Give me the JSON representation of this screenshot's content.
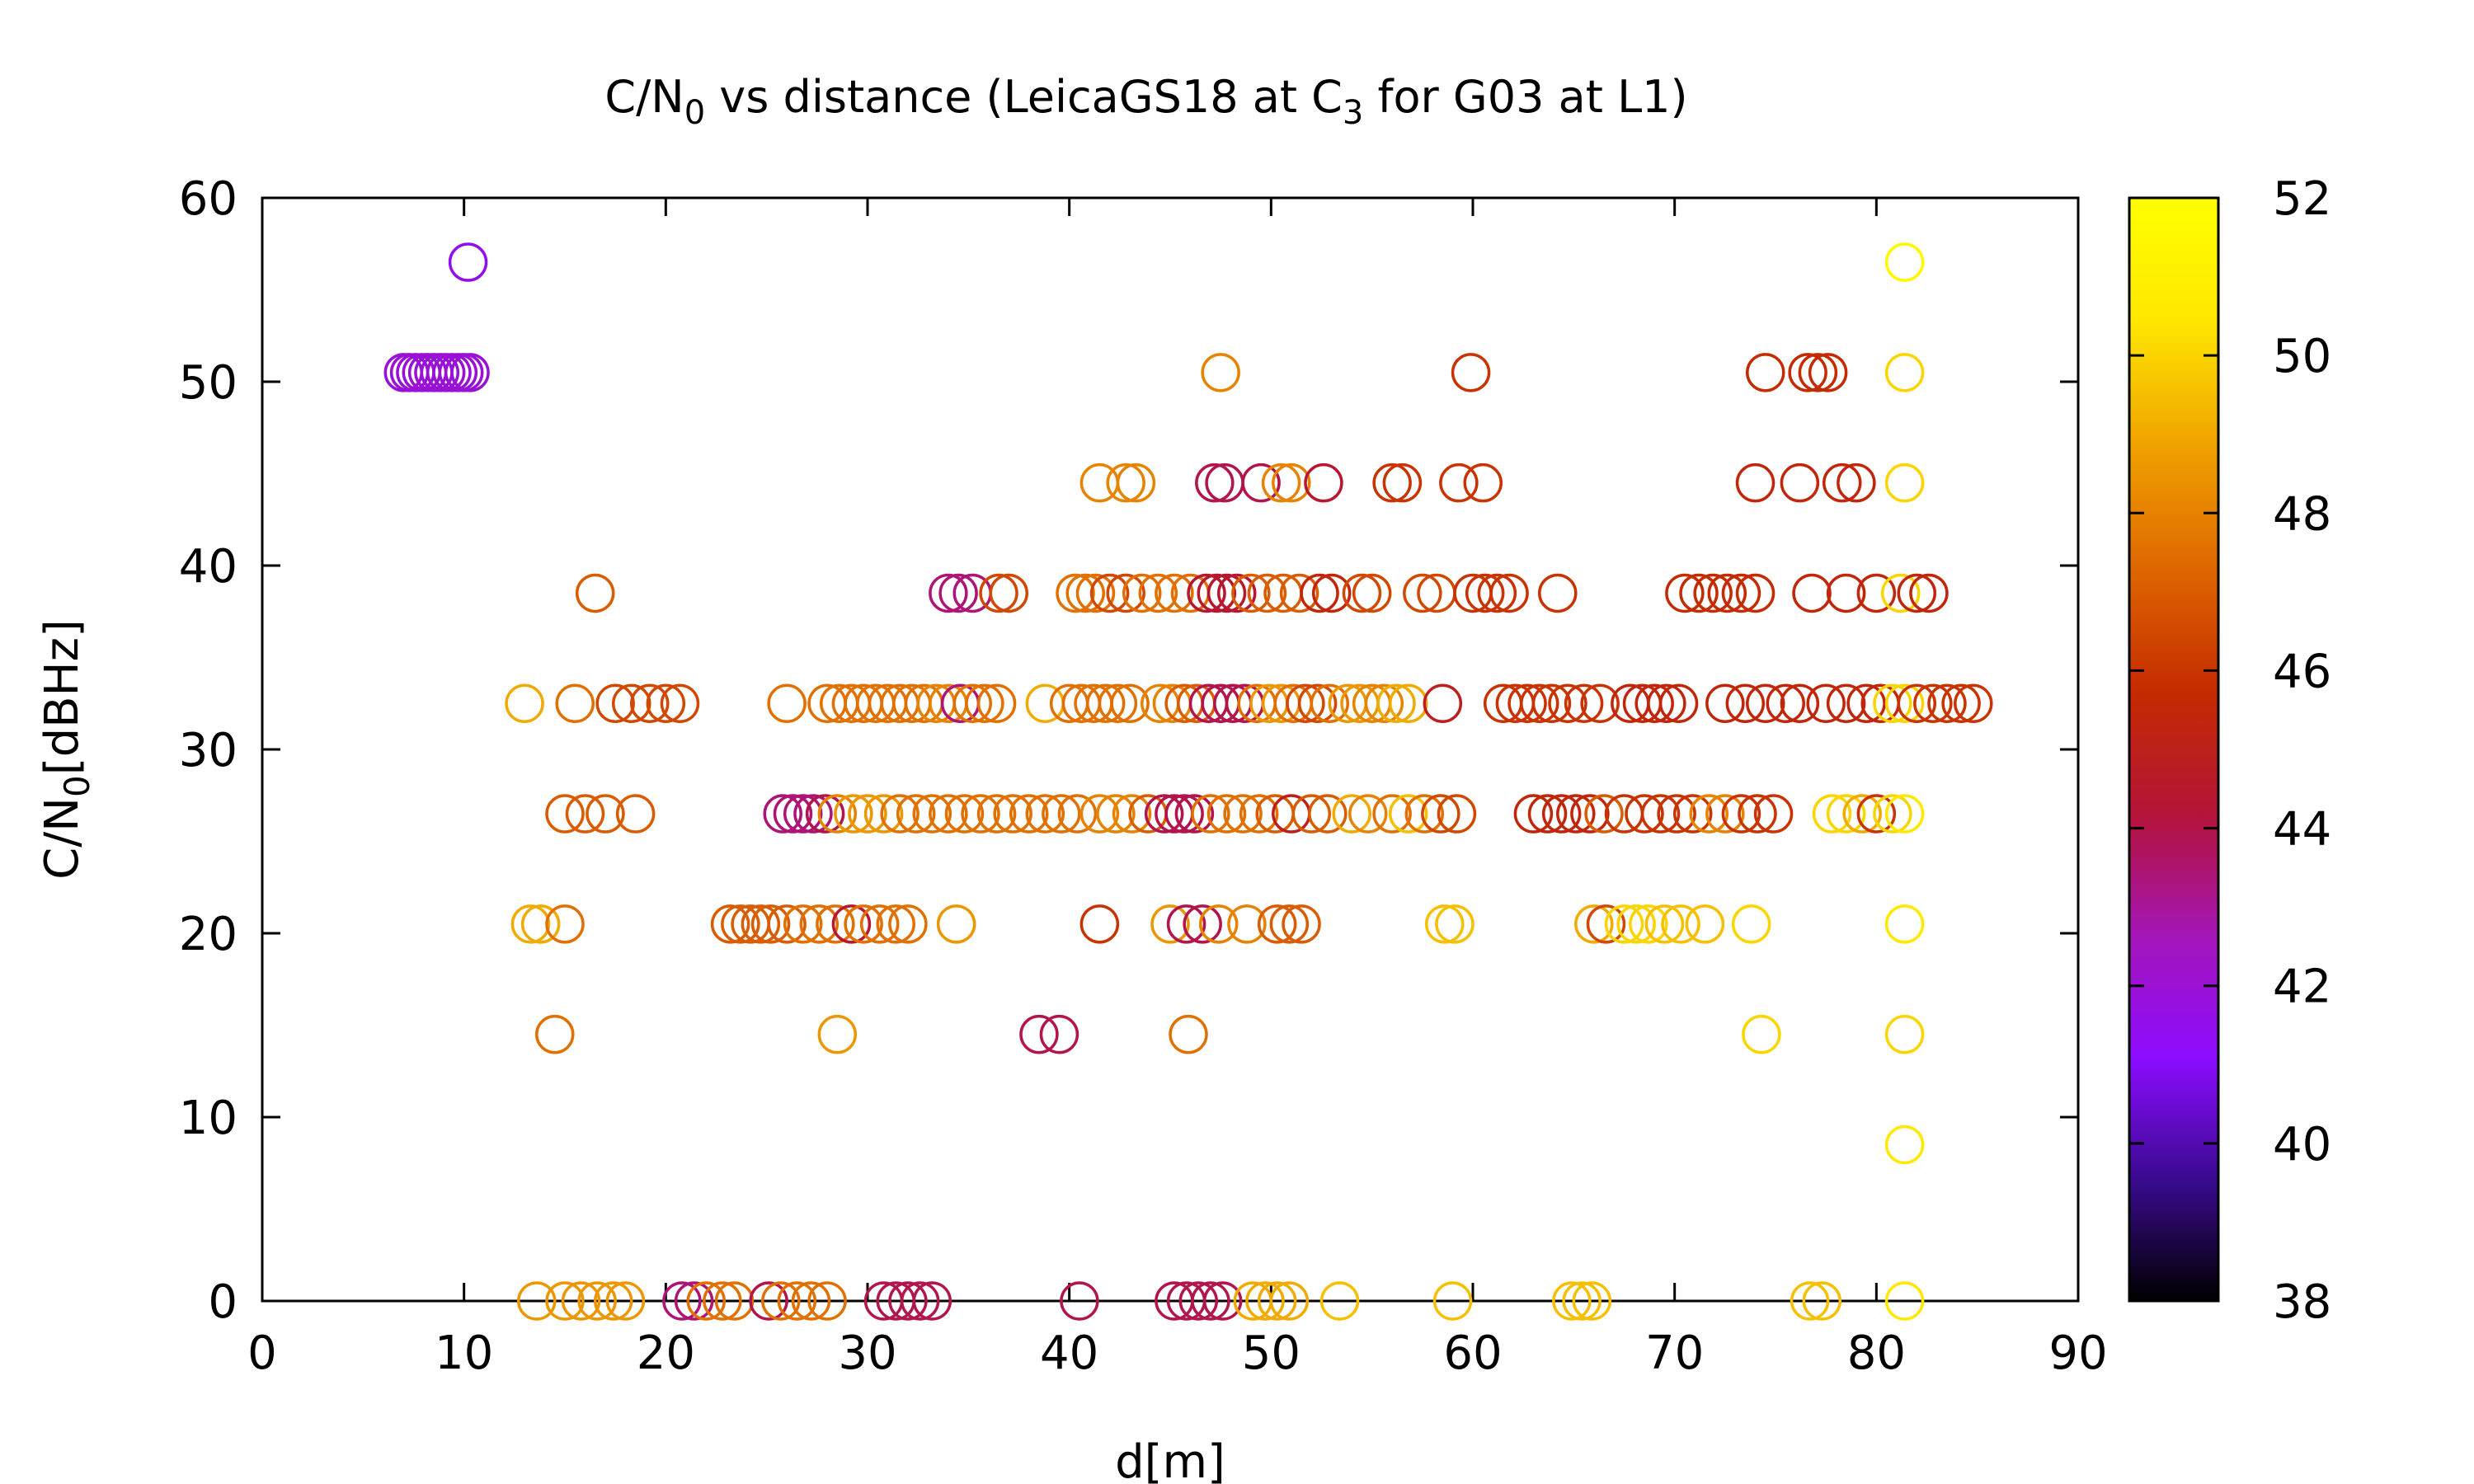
{
  "chart_data": {
    "type": "scatter",
    "title": "C/N",
    "title_sub": "0",
    "title_rest": " vs distance (LeicaGS18 at C",
    "title_sub2": "3",
    "title_tail": " for G03 at L1)",
    "xlabel": "d[m]",
    "ylabel": "C/N",
    "ylabel_sub": "0",
    "ylabel_tail": "[dBHz]",
    "xlim": [
      0,
      90
    ],
    "ylim": [
      0,
      60
    ],
    "xticks": [
      0,
      10,
      20,
      30,
      40,
      50,
      60,
      70,
      80,
      90
    ],
    "yticks": [
      0,
      10,
      20,
      30,
      40,
      50,
      60
    ],
    "colorbar": {
      "range": [
        38,
        52
      ],
      "ticks": [
        38,
        40,
        42,
        44,
        46,
        48,
        50,
        52
      ],
      "palette": [
        "#000000",
        "#3a0a8f",
        "#8b0cff",
        "#a415b8",
        "#b4143a",
        "#c42a00",
        "#df6a00",
        "#f0a500",
        "#ffe800",
        "#ffff00"
      ]
    },
    "marker": "open-circle",
    "grid": false,
    "points": [
      [
        10.2,
        56.5,
        41.5
      ],
      [
        7.0,
        50.5,
        42.0
      ],
      [
        7.3,
        50.5,
        42.0
      ],
      [
        7.6,
        50.5,
        42.0
      ],
      [
        7.9,
        50.5,
        42.0
      ],
      [
        8.2,
        50.5,
        42.0
      ],
      [
        8.5,
        50.5,
        42.0
      ],
      [
        8.8,
        50.5,
        42.0
      ],
      [
        9.1,
        50.5,
        42.0
      ],
      [
        9.4,
        50.5,
        42.0
      ],
      [
        9.7,
        50.5,
        42.0
      ],
      [
        10.0,
        50.5,
        42.0
      ],
      [
        10.3,
        50.5,
        42.0
      ],
      [
        47.5,
        50.5,
        48.0
      ],
      [
        59.9,
        50.5,
        46.0
      ],
      [
        74.5,
        50.5,
        45.8
      ],
      [
        76.6,
        50.5,
        45.8
      ],
      [
        77.1,
        50.5,
        45.8
      ],
      [
        77.6,
        50.5,
        45.8
      ],
      [
        81.4,
        56.5,
        51.5
      ],
      [
        81.4,
        50.5,
        50.0
      ],
      [
        41.5,
        44.5,
        48.0
      ],
      [
        42.8,
        44.5,
        48.0
      ],
      [
        43.3,
        44.5,
        48.0
      ],
      [
        47.2,
        44.5,
        44.0
      ],
      [
        47.7,
        44.5,
        44.0
      ],
      [
        49.5,
        44.5,
        44.0
      ],
      [
        50.5,
        44.5,
        48.0
      ],
      [
        51.0,
        44.5,
        48.0
      ],
      [
        52.6,
        44.5,
        44.5
      ],
      [
        56.0,
        44.5,
        46.0
      ],
      [
        56.5,
        44.5,
        46.0
      ],
      [
        59.3,
        44.5,
        46.0
      ],
      [
        60.5,
        44.5,
        46.0
      ],
      [
        74.0,
        44.5,
        45.5
      ],
      [
        76.2,
        44.5,
        45.5
      ],
      [
        78.3,
        44.5,
        45.5
      ],
      [
        79.0,
        44.5,
        45.5
      ],
      [
        81.4,
        44.5,
        50.0
      ],
      [
        16.5,
        38.5,
        47.0
      ],
      [
        34.0,
        38.5,
        43.5
      ],
      [
        34.5,
        38.5,
        43.5
      ],
      [
        35.2,
        38.5,
        43.5
      ],
      [
        36.5,
        38.5,
        46.5
      ],
      [
        37.0,
        38.5,
        46.5
      ],
      [
        40.3,
        38.5,
        47.5
      ],
      [
        40.8,
        38.5,
        47.5
      ],
      [
        41.3,
        38.5,
        47.5
      ],
      [
        42.0,
        38.5,
        46.5
      ],
      [
        42.8,
        38.5,
        46.5
      ],
      [
        43.6,
        38.5,
        47.5
      ],
      [
        44.4,
        38.5,
        47.5
      ],
      [
        45.2,
        38.5,
        47.5
      ],
      [
        46.0,
        38.5,
        47.5
      ],
      [
        46.8,
        38.5,
        44.5
      ],
      [
        47.3,
        38.5,
        44.5
      ],
      [
        47.8,
        38.5,
        44.5
      ],
      [
        48.3,
        38.5,
        44.5
      ],
      [
        49.0,
        38.5,
        47.0
      ],
      [
        49.8,
        38.5,
        47.0
      ],
      [
        50.6,
        38.5,
        47.0
      ],
      [
        51.4,
        38.5,
        47.0
      ],
      [
        52.4,
        38.5,
        45.5
      ],
      [
        53.0,
        38.5,
        45.5
      ],
      [
        54.5,
        38.5,
        46.5
      ],
      [
        55.0,
        38.5,
        46.5
      ],
      [
        57.5,
        38.5,
        46.5
      ],
      [
        58.2,
        38.5,
        46.5
      ],
      [
        60.0,
        38.5,
        46.0
      ],
      [
        60.6,
        38.5,
        46.0
      ],
      [
        61.2,
        38.5,
        46.0
      ],
      [
        61.8,
        38.5,
        46.0
      ],
      [
        64.2,
        38.5,
        46.0
      ],
      [
        70.5,
        38.5,
        45.8
      ],
      [
        71.2,
        38.5,
        45.8
      ],
      [
        71.9,
        38.5,
        45.8
      ],
      [
        72.6,
        38.5,
        45.8
      ],
      [
        73.3,
        38.5,
        45.8
      ],
      [
        74.0,
        38.5,
        45.8
      ],
      [
        76.8,
        38.5,
        45.5
      ],
      [
        78.5,
        38.5,
        45.5
      ],
      [
        80.0,
        38.5,
        45.5
      ],
      [
        81.2,
        38.5,
        50.0
      ],
      [
        82.0,
        38.5,
        45.5
      ],
      [
        82.6,
        38.5,
        45.5
      ],
      [
        13.0,
        32.5,
        49.0
      ],
      [
        15.5,
        32.5,
        47.5
      ],
      [
        17.5,
        32.5,
        46.5
      ],
      [
        18.3,
        32.5,
        46.5
      ],
      [
        19.2,
        32.5,
        46.5
      ],
      [
        20.0,
        32.5,
        46.5
      ],
      [
        20.7,
        32.5,
        46.5
      ],
      [
        26.0,
        32.5,
        47.5
      ],
      [
        28.0,
        32.5,
        47.5
      ],
      [
        28.6,
        32.5,
        47.5
      ],
      [
        29.2,
        32.5,
        47.5
      ],
      [
        29.8,
        32.5,
        47.5
      ],
      [
        30.4,
        32.5,
        47.5
      ],
      [
        31.0,
        32.5,
        47.5
      ],
      [
        31.6,
        32.5,
        47.5
      ],
      [
        32.2,
        32.5,
        47.5
      ],
      [
        32.8,
        32.5,
        47.5
      ],
      [
        33.4,
        32.5,
        48.0
      ],
      [
        34.0,
        32.5,
        48.0
      ],
      [
        34.6,
        32.5,
        43.5
      ],
      [
        35.2,
        32.5,
        47.5
      ],
      [
        35.8,
        32.5,
        47.5
      ],
      [
        36.4,
        32.5,
        47.5
      ],
      [
        38.8,
        32.5,
        49.0
      ],
      [
        40.0,
        32.5,
        47.5
      ],
      [
        40.6,
        32.5,
        47.5
      ],
      [
        41.2,
        32.5,
        47.5
      ],
      [
        41.8,
        32.5,
        47.5
      ],
      [
        42.4,
        32.5,
        47.5
      ],
      [
        43.0,
        32.5,
        47.5
      ],
      [
        44.5,
        32.5,
        48.0
      ],
      [
        45.1,
        32.5,
        48.0
      ],
      [
        45.7,
        32.5,
        47.0
      ],
      [
        46.3,
        32.5,
        47.0
      ],
      [
        46.9,
        32.5,
        44.0
      ],
      [
        47.5,
        32.5,
        44.0
      ],
      [
        48.1,
        32.5,
        44.0
      ],
      [
        48.7,
        32.5,
        44.0
      ],
      [
        49.3,
        32.5,
        47.5
      ],
      [
        49.9,
        32.5,
        48.5
      ],
      [
        50.5,
        32.5,
        48.5
      ],
      [
        51.1,
        32.5,
        47.5
      ],
      [
        51.7,
        32.5,
        46.5
      ],
      [
        52.3,
        32.5,
        46.5
      ],
      [
        52.9,
        32.5,
        47.5
      ],
      [
        53.8,
        32.5,
        48.5
      ],
      [
        54.4,
        32.5,
        48.5
      ],
      [
        55.0,
        32.5,
        48.0
      ],
      [
        55.6,
        32.5,
        48.0
      ],
      [
        56.2,
        32.5,
        49.0
      ],
      [
        56.8,
        32.5,
        49.0
      ],
      [
        58.5,
        32.5,
        45.0
      ],
      [
        61.5,
        32.5,
        46.0
      ],
      [
        62.1,
        32.5,
        46.0
      ],
      [
        62.7,
        32.5,
        46.0
      ],
      [
        63.3,
        32.5,
        46.0
      ],
      [
        63.9,
        32.5,
        46.0
      ],
      [
        64.7,
        32.5,
        46.0
      ],
      [
        65.5,
        32.5,
        46.0
      ],
      [
        66.3,
        32.5,
        46.0
      ],
      [
        67.8,
        32.5,
        45.5
      ],
      [
        68.4,
        32.5,
        45.5
      ],
      [
        69.0,
        32.5,
        45.5
      ],
      [
        69.6,
        32.5,
        45.5
      ],
      [
        70.2,
        32.5,
        45.5
      ],
      [
        72.5,
        32.5,
        45.5
      ],
      [
        73.5,
        32.5,
        45.5
      ],
      [
        74.5,
        32.5,
        45.5
      ],
      [
        75.5,
        32.5,
        45.5
      ],
      [
        76.2,
        32.5,
        45.5
      ],
      [
        77.5,
        32.5,
        45.5
      ],
      [
        78.5,
        32.5,
        45.5
      ],
      [
        79.5,
        32.5,
        45.5
      ],
      [
        80.2,
        32.5,
        45.5
      ],
      [
        80.8,
        32.5,
        50.0
      ],
      [
        81.4,
        32.5,
        50.0
      ],
      [
        82.0,
        32.5,
        46.0
      ],
      [
        82.8,
        32.5,
        46.0
      ],
      [
        83.5,
        32.5,
        46.0
      ],
      [
        84.2,
        32.5,
        46.0
      ],
      [
        84.8,
        32.5,
        46.0
      ],
      [
        15.0,
        26.5,
        47.0
      ],
      [
        16.0,
        26.5,
        47.0
      ],
      [
        17.0,
        26.5,
        47.0
      ],
      [
        18.5,
        26.5,
        47.0
      ],
      [
        25.8,
        26.5,
        43.5
      ],
      [
        26.3,
        26.5,
        43.5
      ],
      [
        26.8,
        26.5,
        43.5
      ],
      [
        27.3,
        26.5,
        43.5
      ],
      [
        27.9,
        26.5,
        44.0
      ],
      [
        28.5,
        26.5,
        48.0
      ],
      [
        29.3,
        26.5,
        48.5
      ],
      [
        30.0,
        26.5,
        48.5
      ],
      [
        30.8,
        26.5,
        48.5
      ],
      [
        31.6,
        26.5,
        47.5
      ],
      [
        32.4,
        26.5,
        47.5
      ],
      [
        33.2,
        26.5,
        47.5
      ],
      [
        34.0,
        26.5,
        47.5
      ],
      [
        34.8,
        26.5,
        47.5
      ],
      [
        35.6,
        26.5,
        47.5
      ],
      [
        36.4,
        26.5,
        47.5
      ],
      [
        37.2,
        26.5,
        47.5
      ],
      [
        38.0,
        26.5,
        47.5
      ],
      [
        38.8,
        26.5,
        47.5
      ],
      [
        39.6,
        26.5,
        47.5
      ],
      [
        40.4,
        26.5,
        47.5
      ],
      [
        41.5,
        26.5,
        48.0
      ],
      [
        42.3,
        26.5,
        48.0
      ],
      [
        43.1,
        26.5,
        48.0
      ],
      [
        43.9,
        26.5,
        47.0
      ],
      [
        44.7,
        26.5,
        44.0
      ],
      [
        45.2,
        26.5,
        44.0
      ],
      [
        45.7,
        26.5,
        44.0
      ],
      [
        46.2,
        26.5,
        44.0
      ],
      [
        47.0,
        26.5,
        47.5
      ],
      [
        47.8,
        26.5,
        47.5
      ],
      [
        48.6,
        26.5,
        47.5
      ],
      [
        49.4,
        26.5,
        47.5
      ],
      [
        50.2,
        26.5,
        47.0
      ],
      [
        51.0,
        26.5,
        45.0
      ],
      [
        52.0,
        26.5,
        47.0
      ],
      [
        52.8,
        26.5,
        47.0
      ],
      [
        54.0,
        26.5,
        49.0
      ],
      [
        54.8,
        26.5,
        48.0
      ],
      [
        56.0,
        26.5,
        47.5
      ],
      [
        56.8,
        26.5,
        49.5
      ],
      [
        57.6,
        26.5,
        47.5
      ],
      [
        58.4,
        26.5,
        46.5
      ],
      [
        59.2,
        26.5,
        46.5
      ],
      [
        63.0,
        26.5,
        45.5
      ],
      [
        63.7,
        26.5,
        45.5
      ],
      [
        64.4,
        26.5,
        45.5
      ],
      [
        65.1,
        26.5,
        45.5
      ],
      [
        65.8,
        26.5,
        45.5
      ],
      [
        66.5,
        26.5,
        47.0
      ],
      [
        67.5,
        26.5,
        46.0
      ],
      [
        68.5,
        26.5,
        46.0
      ],
      [
        69.3,
        26.5,
        46.0
      ],
      [
        70.1,
        26.5,
        46.0
      ],
      [
        70.9,
        26.5,
        46.0
      ],
      [
        71.7,
        26.5,
        48.0
      ],
      [
        72.5,
        26.5,
        48.0
      ],
      [
        73.3,
        26.5,
        46.0
      ],
      [
        74.1,
        26.5,
        46.0
      ],
      [
        74.9,
        26.5,
        46.0
      ],
      [
        77.8,
        26.5,
        50.0
      ],
      [
        78.5,
        26.5,
        50.0
      ],
      [
        79.3,
        26.5,
        49.0
      ],
      [
        80.0,
        26.5,
        46.0
      ],
      [
        80.8,
        26.5,
        50.0
      ],
      [
        81.4,
        26.5,
        50.5
      ],
      [
        13.3,
        20.5,
        49.0
      ],
      [
        13.8,
        20.5,
        49.0
      ],
      [
        15.0,
        20.5,
        47.5
      ],
      [
        23.2,
        20.5,
        47.0
      ],
      [
        23.7,
        20.5,
        47.0
      ],
      [
        24.2,
        20.5,
        47.0
      ],
      [
        24.7,
        20.5,
        47.0
      ],
      [
        25.2,
        20.5,
        47.0
      ],
      [
        26.0,
        20.5,
        47.0
      ],
      [
        26.8,
        20.5,
        47.5
      ],
      [
        27.6,
        20.5,
        47.5
      ],
      [
        28.4,
        20.5,
        47.5
      ],
      [
        29.2,
        20.5,
        44.5
      ],
      [
        29.8,
        20.5,
        47.5
      ],
      [
        30.6,
        20.5,
        47.5
      ],
      [
        31.4,
        20.5,
        47.5
      ],
      [
        32.0,
        20.5,
        47.5
      ],
      [
        34.4,
        20.5,
        48.5
      ],
      [
        41.5,
        20.5,
        46.0
      ],
      [
        45.0,
        20.5,
        48.5
      ],
      [
        45.8,
        20.5,
        44.0
      ],
      [
        46.6,
        20.5,
        44.0
      ],
      [
        47.4,
        20.5,
        48.0
      ],
      [
        48.8,
        20.5,
        48.0
      ],
      [
        50.3,
        20.5,
        47.0
      ],
      [
        50.9,
        20.5,
        47.0
      ],
      [
        51.5,
        20.5,
        47.0
      ],
      [
        58.6,
        20.5,
        49.5
      ],
      [
        59.1,
        20.5,
        49.5
      ],
      [
        66.0,
        20.5,
        49.0
      ],
      [
        66.6,
        20.5,
        46.5
      ],
      [
        67.5,
        20.5,
        50.0
      ],
      [
        68.1,
        20.5,
        50.0
      ],
      [
        68.7,
        20.5,
        50.0
      ],
      [
        69.5,
        20.5,
        49.5
      ],
      [
        70.3,
        20.5,
        49.5
      ],
      [
        71.5,
        20.5,
        49.5
      ],
      [
        73.8,
        20.5,
        50.0
      ],
      [
        81.4,
        20.5,
        50.5
      ],
      [
        14.5,
        14.5,
        47.5
      ],
      [
        28.5,
        14.5,
        48.5
      ],
      [
        38.5,
        14.5,
        44.0
      ],
      [
        39.5,
        14.5,
        44.0
      ],
      [
        45.9,
        14.5,
        47.5
      ],
      [
        74.3,
        14.5,
        50.0
      ],
      [
        81.4,
        14.5,
        50.0
      ],
      [
        81.4,
        8.5,
        50.5
      ],
      [
        13.6,
        0,
        48.5
      ],
      [
        15.0,
        0,
        48.5
      ],
      [
        15.8,
        0,
        48.5
      ],
      [
        16.6,
        0,
        48.5
      ],
      [
        17.4,
        0,
        48.5
      ],
      [
        18.0,
        0,
        48.5
      ],
      [
        20.8,
        0,
        43.5
      ],
      [
        21.4,
        0,
        43.5
      ],
      [
        22.0,
        0,
        47.5
      ],
      [
        22.8,
        0,
        47.5
      ],
      [
        23.4,
        0,
        47.5
      ],
      [
        25.1,
        0,
        44.0
      ],
      [
        25.7,
        0,
        47.5
      ],
      [
        26.5,
        0,
        47.5
      ],
      [
        27.2,
        0,
        47.5
      ],
      [
        28.0,
        0,
        47.5
      ],
      [
        30.8,
        0,
        44.0
      ],
      [
        31.4,
        0,
        44.0
      ],
      [
        32.0,
        0,
        44.0
      ],
      [
        32.6,
        0,
        44.0
      ],
      [
        33.2,
        0,
        44.0
      ],
      [
        40.5,
        0,
        44.0
      ],
      [
        45.2,
        0,
        44.0
      ],
      [
        45.8,
        0,
        44.0
      ],
      [
        46.4,
        0,
        44.0
      ],
      [
        47.0,
        0,
        44.0
      ],
      [
        47.6,
        0,
        44.0
      ],
      [
        49.1,
        0,
        49.0
      ],
      [
        49.7,
        0,
        49.0
      ],
      [
        50.3,
        0,
        49.0
      ],
      [
        50.9,
        0,
        49.0
      ],
      [
        53.4,
        0,
        49.5
      ],
      [
        59.0,
        0,
        49.5
      ],
      [
        64.9,
        0,
        49.5
      ],
      [
        65.4,
        0,
        49.5
      ],
      [
        65.9,
        0,
        49.5
      ],
      [
        76.7,
        0,
        49.5
      ],
      [
        77.3,
        0,
        49.5
      ],
      [
        81.4,
        0,
        50.5
      ]
    ]
  }
}
